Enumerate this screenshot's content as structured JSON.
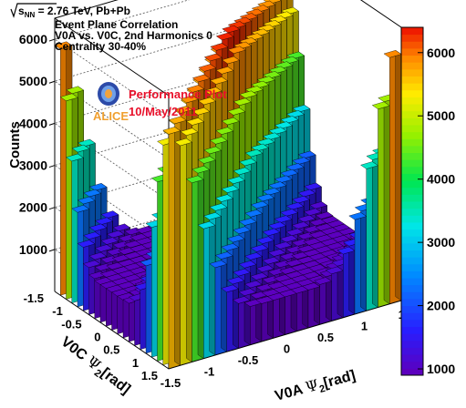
{
  "chart_data": {
    "type": "lego3d",
    "header": {
      "energy_prefix": "√s",
      "energy_sub": "NN",
      "energy_value": " = 2.76 TeV, Pb+Pb",
      "line1": "Event Plane Correlation",
      "line2": "V0A vs. V0C,  2nd Harmonics 0",
      "line3": "Centrality 30-40%"
    },
    "performance": {
      "label": "Performance Plot",
      "date": "10/May/2011",
      "experiment": "ALICE"
    },
    "zlabel": "Counts",
    "x_axis": {
      "label_main": "V0A ",
      "label_psi": "Ψ",
      "label_sub": "2",
      "label_unit": "[rad]",
      "range": [
        -1.571,
        1.571
      ],
      "tick_labels": [
        "-1.5",
        "-1",
        "-0.5",
        "0",
        "0.5",
        "1",
        "1."
      ]
    },
    "y_axis": {
      "label_main": "V0C ",
      "label_psi": "Ψ",
      "label_sub": "2",
      "label_unit": "[rad]",
      "range": [
        -1.571,
        1.571
      ],
      "tick_labels": [
        "-1.5",
        "-1",
        "-0.5",
        "0",
        "0.5",
        "1",
        "1.5"
      ]
    },
    "z_axis": {
      "range": [
        0,
        6500
      ],
      "tick_labels": [
        "1000",
        "2000",
        "3000",
        "4000",
        "5000",
        "6000"
      ]
    },
    "colorbar": {
      "range": [
        900,
        6400
      ],
      "tick_labels": [
        "1000",
        "2000",
        "3000",
        "4000",
        "5000",
        "6000"
      ]
    },
    "peak_diagonal_counts": 6300,
    "corner_counts": 5300,
    "minimum_counts": 900
  }
}
